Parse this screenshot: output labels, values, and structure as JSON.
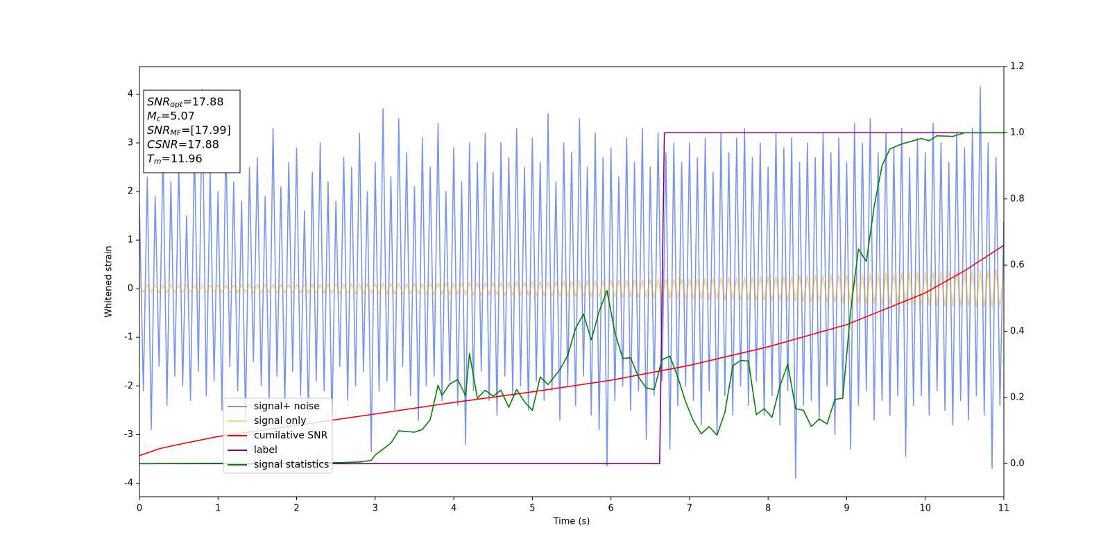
{
  "chart_data": {
    "type": "line",
    "xlabel": "Time (s)",
    "ylabel": "Whitened strain",
    "xlim": [
      0,
      11
    ],
    "xticks": [
      0,
      1,
      2,
      3,
      4,
      5,
      6,
      7,
      8,
      9,
      10,
      11
    ],
    "ylim": [
      -4.28,
      4.57
    ],
    "yticks": [
      -4,
      -3,
      -2,
      -1,
      0,
      1,
      2,
      3,
      4
    ],
    "y2lim": [
      -0.1,
      1.2
    ],
    "y2ticks": [
      {
        "value": 0,
        "label": "0.0"
      },
      0.2,
      0.4,
      0.6,
      0.8,
      {
        "value": 1,
        "label": "1.0"
      },
      1.2
    ],
    "annotations": [
      {
        "symbol": "SNR",
        "sub": "opt",
        "text": "=17.88"
      },
      {
        "symbol": "M",
        "sub": "c",
        "text": "=5.07"
      },
      {
        "symbol": "SNR",
        "sub": "MF",
        "text": "=[17.99]"
      },
      {
        "symbol": "CSNR",
        "text": "=17.88"
      },
      {
        "symbol": "T",
        "sub": "m",
        "text": "=11.96"
      }
    ],
    "x": [
      0,
      0.05,
      0.1,
      0.15,
      0.2,
      0.25,
      0.3,
      0.35,
      0.4,
      0.45,
      0.5,
      0.55,
      0.6,
      0.65,
      0.7,
      0.75,
      0.8,
      0.85,
      0.9,
      0.95,
      1,
      1.05,
      1.1,
      1.15,
      1.2,
      1.25,
      1.3,
      1.35,
      1.4,
      1.45,
      1.5,
      1.55,
      1.6,
      1.65,
      1.7,
      1.75,
      1.8,
      1.85,
      1.9,
      1.95,
      2,
      2.05,
      2.1,
      2.15,
      2.2,
      2.25,
      2.3,
      2.35,
      2.4,
      2.45,
      2.5,
      2.55,
      2.6,
      2.65,
      2.7,
      2.75,
      2.8,
      2.85,
      2.9,
      2.95,
      3,
      3.05,
      3.1,
      3.15,
      3.2,
      3.25,
      3.3,
      3.35,
      3.4,
      3.45,
      3.5,
      3.55,
      3.6,
      3.65,
      3.7,
      3.75,
      3.8,
      3.85,
      3.9,
      3.95,
      4,
      4.05,
      4.1,
      4.15,
      4.2,
      4.25,
      4.3,
      4.35,
      4.4,
      4.45,
      4.5,
      4.55,
      4.6,
      4.65,
      4.7,
      4.75,
      4.8,
      4.85,
      4.9,
      4.95,
      5,
      5.05,
      5.1,
      5.15,
      5.2,
      5.25,
      5.3,
      5.35,
      5.4,
      5.45,
      5.5,
      5.55,
      5.6,
      5.65,
      5.7,
      5.75,
      5.8,
      5.85,
      5.9,
      5.95,
      6,
      6.05,
      6.1,
      6.15,
      6.2,
      6.25,
      6.3,
      6.35,
      6.4,
      6.45,
      6.5,
      6.55,
      6.6,
      6.65,
      6.7,
      6.75,
      6.8,
      6.85,
      6.9,
      6.95,
      7,
      7.05,
      7.1,
      7.15,
      7.2,
      7.25,
      7.3,
      7.35,
      7.4,
      7.45,
      7.5,
      7.55,
      7.6,
      7.65,
      7.7,
      7.75,
      7.8,
      7.85,
      7.9,
      7.95,
      8,
      8.05,
      8.1,
      8.15,
      8.2,
      8.25,
      8.3,
      8.35,
      8.4,
      8.45,
      8.5,
      8.55,
      8.6,
      8.65,
      8.7,
      8.75,
      8.8,
      8.85,
      8.9,
      8.95,
      9,
      9.05,
      9.1,
      9.15,
      9.2,
      9.25,
      9.3,
      9.35,
      9.4,
      9.45,
      9.5,
      9.55,
      9.6,
      9.65,
      9.7,
      9.75,
      9.8,
      9.85,
      9.9,
      9.95,
      10,
      10.05,
      10.1,
      10.15,
      10.2,
      10.25,
      10.3,
      10.35,
      10.4,
      10.45,
      10.5,
      10.55,
      10.6,
      10.65,
      10.7,
      10.75,
      10.8,
      10.85,
      10.9,
      10.95,
      11
    ],
    "series": [
      {
        "name": "signal+ noise",
        "color": "#4169e1",
        "alpha": 0.7,
        "values": [
          1.7,
          -2.1,
          2.3,
          -2.9,
          1.9,
          -1.6,
          2.8,
          -2.4,
          2.2,
          -1.8,
          2.6,
          -2.0,
          1.5,
          -2.3,
          2.9,
          -1.7,
          4.1,
          -2.2,
          2.4,
          -1.9,
          2.0,
          -2.5,
          3.1,
          -1.6,
          2.2,
          -2.1,
          1.8,
          -2.7,
          2.5,
          -1.5,
          2.7,
          -2.0,
          1.9,
          -2.3,
          3.3,
          -1.8,
          2.1,
          -2.4,
          2.6,
          -1.7,
          2.9,
          -2.2,
          1.6,
          -2.6,
          2.4,
          -1.9,
          3.0,
          -2.1,
          2.2,
          -2.8,
          1.8,
          -1.6,
          2.7,
          -2.3,
          2.5,
          -2.0,
          3.2,
          -1.7,
          2.0,
          -3.35,
          2.6,
          -2.1,
          3.7,
          -1.9,
          2.3,
          -2.5,
          3.5,
          -1.6,
          2.8,
          -2.2,
          2.1,
          -2.7,
          3.1,
          -2.0,
          2.5,
          -1.8,
          3.4,
          -2.3,
          2.0,
          -1.9,
          2.9,
          -2.4,
          2.2,
          -3.2,
          3.0,
          -2.1,
          2.6,
          -1.7,
          3.2,
          -2.3,
          2.4,
          -2.6,
          3.0,
          -1.8,
          2.7,
          -2.2,
          3.3,
          -2.0,
          2.5,
          -2.5,
          3.1,
          -1.9,
          2.6,
          -2.3,
          3.6,
          -2.1,
          2.2,
          -2.7,
          3.0,
          -2.0,
          2.8,
          -2.4,
          3.5,
          -1.8,
          2.5,
          -2.6,
          3.2,
          -2.9,
          2.7,
          -3.65,
          2.9,
          -2.3,
          2.3,
          -2.0,
          3.1,
          -2.5,
          2.6,
          -2.1,
          3.3,
          -3.1,
          2.5,
          -2.2,
          3.2,
          -1.9,
          2.8,
          -3.3,
          3.0,
          -2.4,
          2.6,
          -2.0,
          3.0,
          -2.3,
          2.7,
          -2.8,
          3.1,
          -2.1,
          2.4,
          -3.0,
          3.2,
          -2.2,
          2.8,
          -2.6,
          3.1,
          -2.0,
          3.3,
          -2.4,
          2.7,
          -1.9,
          3.0,
          -2.6,
          2.5,
          -2.2,
          3.2,
          -2.8,
          2.9,
          -2.1,
          3.1,
          -3.9,
          2.6,
          -2.4,
          3.0,
          -2.3,
          2.7,
          -2.7,
          3.2,
          -2.0,
          2.8,
          -3.0,
          3.1,
          -2.2,
          2.6,
          -3.3,
          3.4,
          -2.4,
          3.0,
          -2.1,
          3.5,
          -2.7,
          2.8,
          -2.3,
          3.2,
          -2.6,
          2.9,
          -2.2,
          3.3,
          -3.45,
          2.7,
          -2.4,
          3.1,
          -2.2,
          2.8,
          -2.6,
          3.4,
          -2.1,
          3.0,
          -2.5,
          2.6,
          -2.8,
          3.2,
          -2.3,
          2.9,
          -2.7,
          3.3,
          -2.2,
          4.15,
          -2.6,
          3.0,
          -3.7,
          2.7,
          -2.4,
          1.4
        ]
      },
      {
        "name": "signal only",
        "color": "#ffa500",
        "alpha": 0.5,
        "values": [
          0.08,
          -0.08,
          0.08,
          -0.08,
          0.08,
          -0.08,
          0.08,
          -0.08,
          0.08,
          -0.08,
          0.08,
          -0.08,
          0.08,
          -0.08,
          0.08,
          -0.08,
          0.08,
          -0.08,
          0.08,
          -0.08,
          0.08,
          -0.08,
          0.08,
          -0.08,
          0.08,
          -0.08,
          0.08,
          -0.08,
          0.09,
          -0.09,
          0.09,
          -0.09,
          0.09,
          -0.09,
          0.09,
          -0.09,
          0.09,
          -0.09,
          0.09,
          -0.09,
          0.09,
          -0.09,
          0.09,
          -0.09,
          0.09,
          -0.09,
          0.09,
          -0.09,
          0.1,
          -0.1,
          0.1,
          -0.1,
          0.1,
          -0.1,
          0.1,
          -0.1,
          0.1,
          -0.1,
          0.1,
          -0.1,
          0.1,
          -0.1,
          0.11,
          -0.11,
          0.11,
          -0.11,
          0.11,
          -0.11,
          0.11,
          -0.11,
          0.11,
          -0.11,
          0.11,
          -0.12,
          0.12,
          -0.12,
          0.12,
          -0.12,
          0.12,
          -0.12,
          0.12,
          -0.12,
          0.12,
          -0.13,
          0.13,
          -0.13,
          0.13,
          -0.13,
          0.13,
          -0.13,
          0.13,
          -0.13,
          0.14,
          -0.14,
          0.14,
          -0.14,
          0.14,
          -0.14,
          0.14,
          -0.14,
          0.15,
          -0.15,
          0.15,
          -0.15,
          0.15,
          -0.15,
          0.15,
          -0.16,
          0.16,
          -0.16,
          0.16,
          -0.16,
          0.16,
          -0.16,
          0.17,
          -0.17,
          0.17,
          -0.17,
          0.17,
          -0.17,
          0.18,
          -0.18,
          0.18,
          -0.18,
          0.18,
          -0.18,
          0.19,
          -0.19,
          0.19,
          -0.19,
          0.19,
          -0.19,
          0.2,
          -0.2,
          0.2,
          -0.2,
          0.2,
          -0.2,
          0.21,
          -0.21,
          0.21,
          -0.21,
          0.21,
          -0.22,
          0.22,
          -0.22,
          0.22,
          -0.22,
          0.23,
          -0.23,
          0.23,
          -0.23,
          0.23,
          -0.23,
          0.24,
          -0.24,
          0.24,
          -0.24,
          0.25,
          -0.25,
          0.25,
          -0.25,
          0.25,
          -0.26,
          0.26,
          -0.26,
          0.26,
          -0.26,
          0.27,
          -0.27,
          0.27,
          -0.27,
          0.28,
          -0.28,
          0.28,
          -0.28,
          0.29,
          -0.29,
          0.29,
          -0.29,
          0.29,
          -0.3,
          0.3,
          -0.3,
          0.3,
          -0.31,
          0.31,
          -0.31,
          0.31,
          -0.32,
          0.32,
          -0.32,
          0.32,
          -0.33,
          0.33,
          -0.33,
          0.33,
          -0.34,
          0.34,
          -0.34,
          0.34,
          -0.35,
          0.35,
          -0.35,
          0.36,
          -0.36,
          0.36,
          -0.36,
          0.37,
          -0.37,
          0.37,
          -0.37,
          0.38,
          -0.38,
          0.38,
          -0.39,
          0.39,
          -0.39,
          0.39,
          -0.4,
          0.4
        ]
      },
      {
        "name": "cumilative SNR",
        "color": "#ff0000",
        "axis": "y2",
        "x": [
          0,
          0.25,
          0.5,
          1,
          2,
          3,
          4,
          5,
          6,
          7,
          8,
          9,
          10,
          10.5,
          11
        ],
        "values": [
          0.024,
          0.045,
          0.058,
          0.082,
          0.116,
          0.15,
          0.185,
          0.217,
          0.252,
          0.297,
          0.353,
          0.42,
          0.516,
          0.583,
          0.66
        ]
      },
      {
        "name": "label",
        "color": "#800080",
        "axis": "y2",
        "x": [
          0,
          6.62,
          6.68,
          11
        ],
        "values": [
          0,
          0,
          1,
          1
        ]
      },
      {
        "name": "signal statistics",
        "color": "#008000",
        "axis": "y2",
        "x": [
          0,
          1,
          2,
          2.5,
          2.8,
          2.95,
          3.0,
          3.2,
          3.3,
          3.5,
          3.6,
          3.7,
          3.8,
          3.85,
          3.95,
          4.05,
          4.15,
          4.2,
          4.3,
          4.4,
          4.5,
          4.6,
          4.7,
          4.8,
          4.9,
          5.0,
          5.1,
          5.2,
          5.3,
          5.35,
          5.45,
          5.55,
          5.65,
          5.75,
          5.85,
          5.95,
          6.05,
          6.15,
          6.25,
          6.35,
          6.45,
          6.55,
          6.65,
          6.75,
          6.85,
          6.95,
          7.05,
          7.15,
          7.25,
          7.35,
          7.45,
          7.55,
          7.65,
          7.75,
          7.85,
          7.95,
          8.05,
          8.15,
          8.25,
          8.35,
          8.45,
          8.55,
          8.65,
          8.75,
          8.85,
          8.95,
          9.05,
          9.15,
          9.25,
          9.35,
          9.45,
          9.55,
          9.7,
          9.85,
          9.95,
          10.05,
          10.15,
          10.35,
          10.5,
          11
        ],
        "values": [
          0,
          0.001,
          0.001,
          0.003,
          0.005,
          0.01,
          0.026,
          0.062,
          0.099,
          0.095,
          0.103,
          0.133,
          0.237,
          0.206,
          0.241,
          0.254,
          0.206,
          0.333,
          0.198,
          0.222,
          0.204,
          0.222,
          0.17,
          0.224,
          0.187,
          0.161,
          0.262,
          0.239,
          0.269,
          0.284,
          0.327,
          0.409,
          0.452,
          0.374,
          0.46,
          0.523,
          0.396,
          0.318,
          0.32,
          0.262,
          0.228,
          0.224,
          0.314,
          0.325,
          0.262,
          0.187,
          0.129,
          0.09,
          0.112,
          0.086,
          0.155,
          0.295,
          0.312,
          0.31,
          0.148,
          0.166,
          0.14,
          0.234,
          0.301,
          0.166,
          0.161,
          0.112,
          0.135,
          0.12,
          0.194,
          0.198,
          0.46,
          0.649,
          0.611,
          0.778,
          0.901,
          0.951,
          0.966,
          0.976,
          0.983,
          0.976,
          0.991,
          0.989,
          1.0,
          1.0
        ]
      }
    ]
  }
}
